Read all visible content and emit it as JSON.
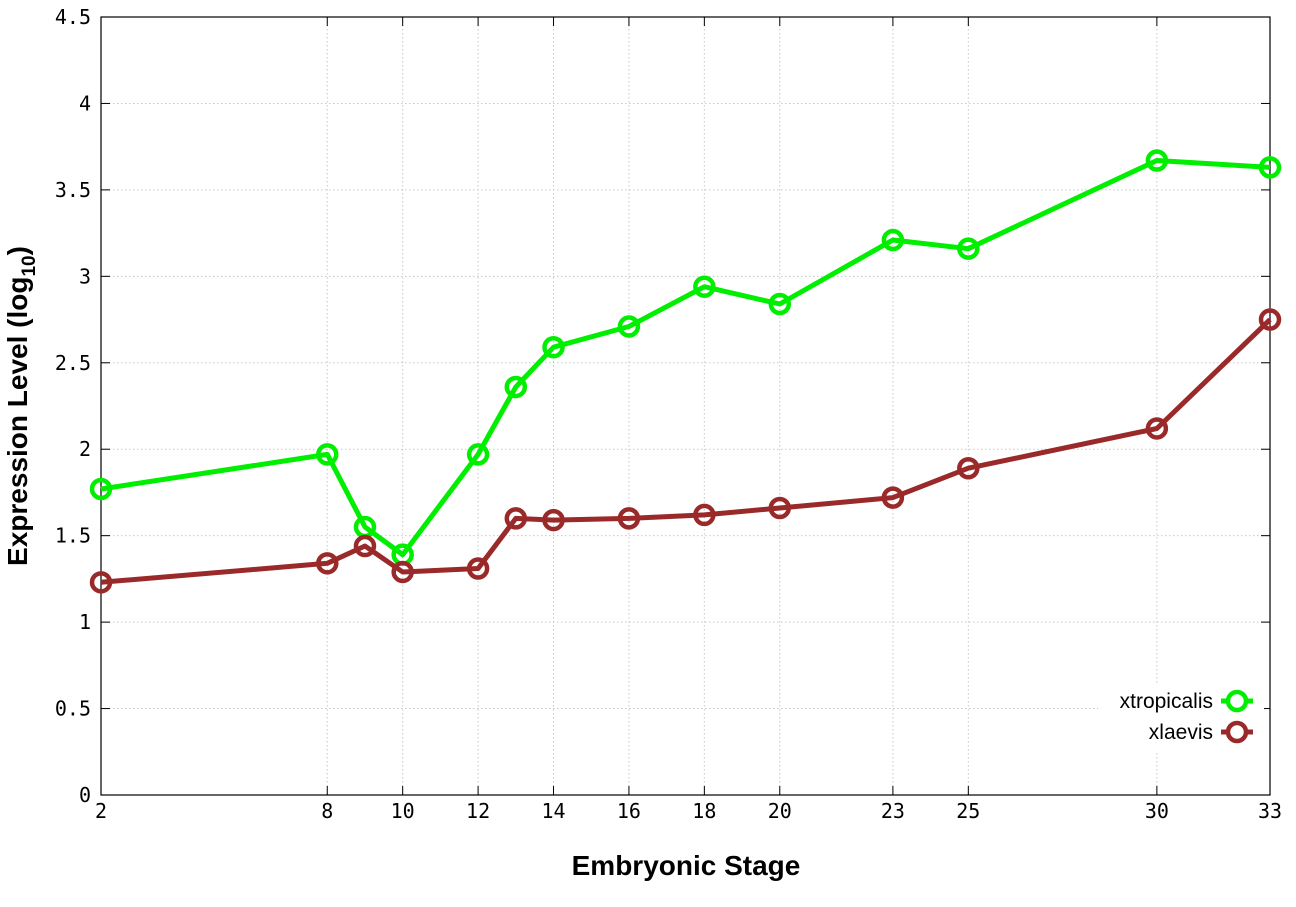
{
  "chart_data": {
    "type": "line",
    "title": "",
    "xlabel": "Embryonic Stage",
    "ylabel": "Expression Level (log",
    "ylabel_subscript": "10",
    "ylabel_close": ")",
    "x": [
      2,
      8,
      9,
      10,
      12,
      13,
      14,
      16,
      18,
      20,
      23,
      25,
      30,
      33
    ],
    "x_tick_labels": [
      "2",
      "8",
      "10",
      "12",
      "14",
      "16",
      "18",
      "20",
      "23",
      "25",
      "30",
      "33"
    ],
    "x_tick_values": [
      2,
      8,
      10,
      12,
      14,
      16,
      18,
      20,
      23,
      25,
      30,
      33
    ],
    "y_ticks": [
      0,
      0.5,
      1,
      1.5,
      2,
      2.5,
      3,
      3.5,
      4,
      4.5
    ],
    "y_tick_labels": [
      "0",
      "0.5",
      "1",
      "1.5",
      "2",
      "2.5",
      "3",
      "3.5",
      "4",
      "4.5"
    ],
    "xlim": [
      2,
      33
    ],
    "ylim": [
      0,
      4.5
    ],
    "grid": true,
    "legend_position": "bottom-right",
    "series": [
      {
        "name": "xtropicalis",
        "color": "#00ee00",
        "values": [
          1.77,
          1.97,
          1.55,
          1.39,
          1.97,
          2.36,
          2.59,
          2.71,
          2.94,
          2.84,
          3.21,
          3.16,
          3.67,
          3.63
        ]
      },
      {
        "name": "xlaevis",
        "color": "#9a2a2a",
        "values": [
          1.23,
          1.34,
          1.44,
          1.29,
          1.31,
          1.6,
          1.59,
          1.6,
          1.62,
          1.66,
          1.72,
          1.89,
          2.12,
          2.75
        ]
      }
    ]
  }
}
